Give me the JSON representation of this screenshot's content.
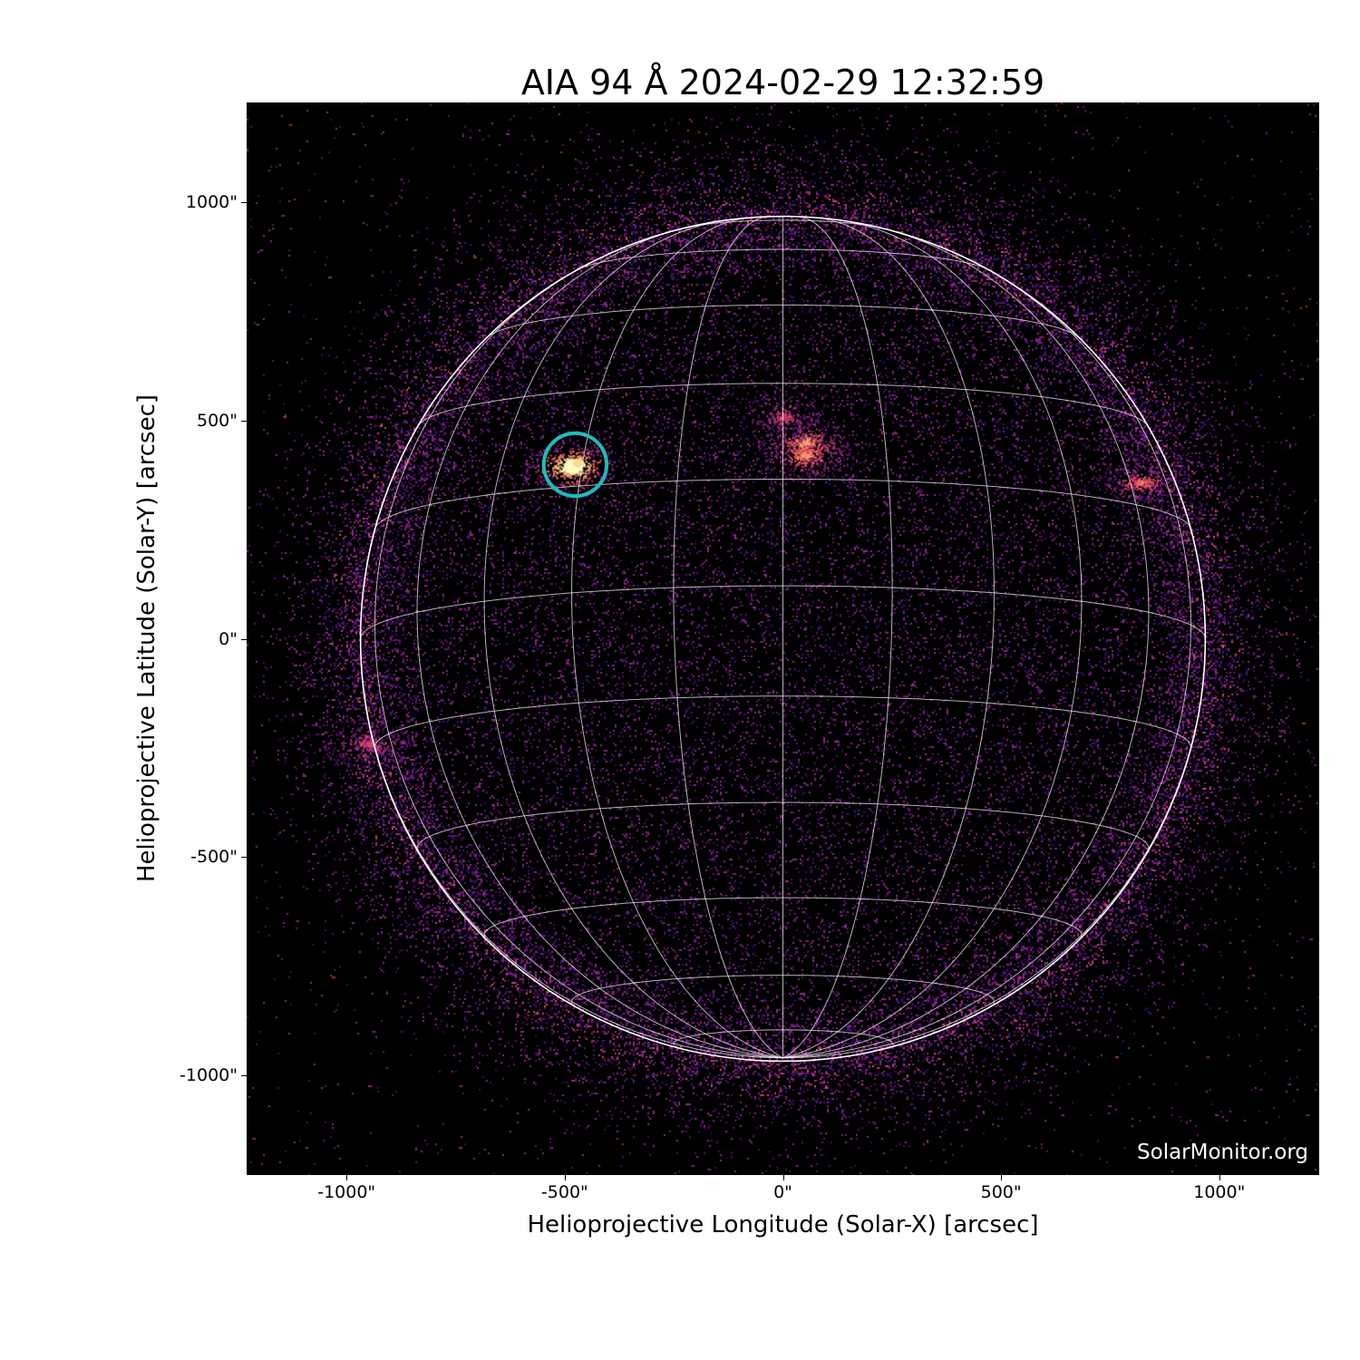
{
  "chart_data": {
    "type": "image",
    "title": "AIA 94 Å 2024-02-29 12:32:59",
    "xlabel": "Helioprojective Longitude (Solar-X) [arcsec]",
    "ylabel": "Helioprojective Latitude (Solar-Y) [arcsec]",
    "xlim": [
      -1229,
      1229
    ],
    "ylim": [
      -1229,
      1229
    ],
    "xticks": [
      {
        "value": -1000,
        "label": "-1000\""
      },
      {
        "value": -500,
        "label": "-500\""
      },
      {
        "value": 0,
        "label": "0\""
      },
      {
        "value": 500,
        "label": "500\""
      },
      {
        "value": 1000,
        "label": "1000\""
      }
    ],
    "yticks": [
      {
        "value": 1000,
        "label": "1000\""
      },
      {
        "value": 500,
        "label": "500\""
      },
      {
        "value": 0,
        "label": "0\""
      },
      {
        "value": -500,
        "label": "-500\""
      },
      {
        "value": -1000,
        "label": "-1000\""
      }
    ],
    "colormap": "inferno",
    "solar_radius_arcsec": 968,
    "grid": {
      "type": "heliographic",
      "spacing_deg": 15,
      "color": "#ffffff"
    },
    "highlight_circle": {
      "x": -476,
      "y": 399,
      "radius": 72,
      "color": "#1fbcbc"
    },
    "active_regions": [
      {
        "x": -485,
        "y": 395,
        "intensity": 1.0
      },
      {
        "x": 50,
        "y": 450,
        "intensity": 0.7
      },
      {
        "x": 50,
        "y": 420,
        "intensity": 0.65
      },
      {
        "x": 0,
        "y": 510,
        "intensity": 0.45
      },
      {
        "x": 820,
        "y": 360,
        "intensity": 0.55
      },
      {
        "x": -950,
        "y": -240,
        "intensity": 0.45
      }
    ],
    "watermark": "SolarMonitor.org"
  }
}
